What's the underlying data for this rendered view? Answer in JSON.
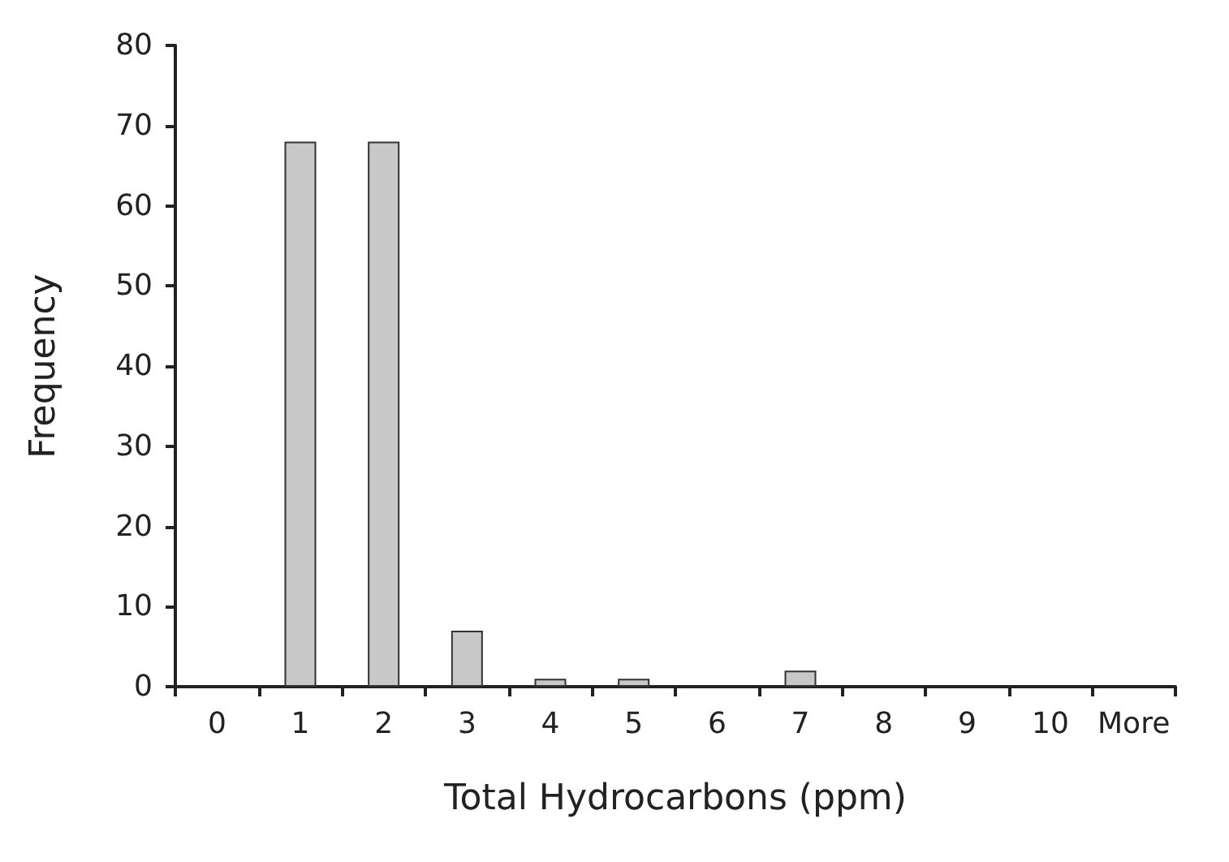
{
  "chart_data": {
    "type": "bar",
    "xlabel": "Total Hydrocarbons (ppm)",
    "ylabel": "Frequency",
    "categories": [
      "0",
      "1",
      "2",
      "3",
      "4",
      "5",
      "6",
      "7",
      "8",
      "9",
      "10",
      "More"
    ],
    "values": [
      0,
      68,
      68,
      7,
      1,
      1,
      0,
      2,
      0,
      0,
      0,
      0
    ],
    "color": "#c8c8c8",
    "ylim": [
      0,
      80
    ],
    "yticks": [
      0,
      10,
      20,
      30,
      40,
      50,
      60,
      70,
      80
    ],
    "grid": false
  }
}
